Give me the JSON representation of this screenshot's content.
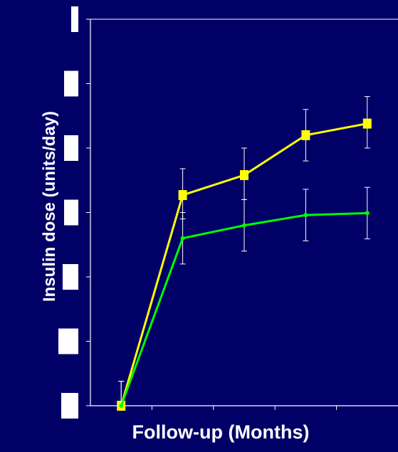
{
  "chart_data": {
    "type": "line",
    "title": "",
    "xlabel": "Follow-up (Months)",
    "ylabel": "Insulin dose (units/day)",
    "x": [
      0,
      1,
      2,
      3,
      4
    ],
    "xlim": [
      -0.5,
      4.5
    ],
    "ylim": [
      0,
      6
    ],
    "ytick_values": [
      0,
      1,
      2,
      3,
      4,
      5,
      6
    ],
    "ytick_labels_obscured": true,
    "grid": false,
    "legend": "none",
    "series": [
      {
        "color": "#ffff00",
        "marker": "square",
        "values": [
          0.0,
          3.27,
          3.58,
          4.2,
          4.38
        ],
        "err_low": [
          0.0,
          2.9,
          3.2,
          3.8,
          4.0
        ],
        "err_high": [
          0.38,
          3.68,
          4.0,
          4.6,
          4.8
        ]
      },
      {
        "color": "#00ff00",
        "marker": "dot",
        "values": [
          0.0,
          2.6,
          2.8,
          2.96,
          2.99
        ],
        "err_low": [
          0.0,
          2.2,
          2.4,
          2.56,
          2.59
        ],
        "err_high": [
          0.38,
          3.0,
          3.2,
          3.36,
          3.39
        ]
      }
    ],
    "colors": {
      "background": "#000066",
      "axes": "#ffffff",
      "tick_label_boxes": "#ffffff"
    }
  }
}
